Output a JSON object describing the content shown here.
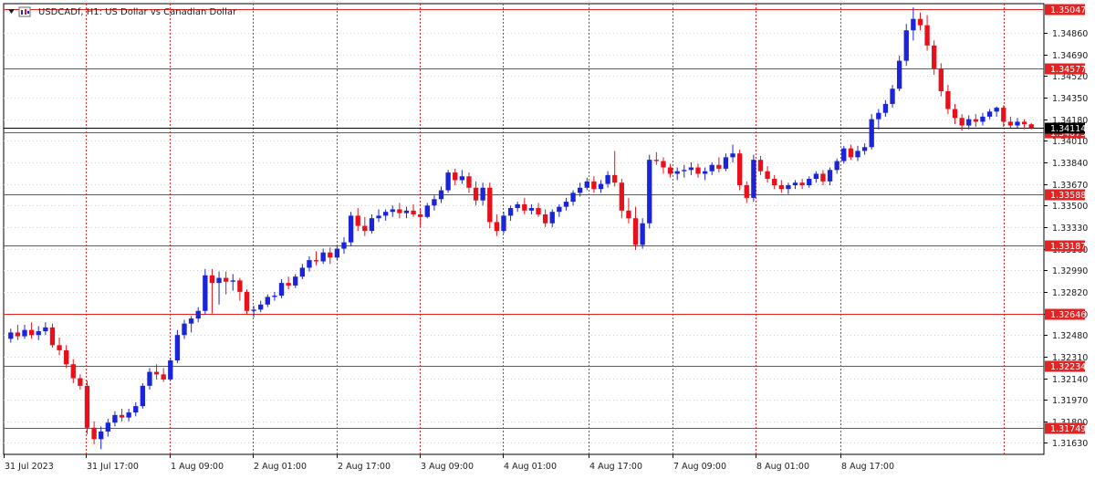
{
  "window": {
    "symbol_title": "USDCADf, H1:  US Dollar vs Canadian Dollar"
  },
  "colors": {
    "background": "#ffffff",
    "bull_candle": "#1a24d8",
    "bear_candle": "#e8101a",
    "level_line": "#e52323",
    "grid": "#d0d0d0",
    "time_separator": "#e52323",
    "current_price_line": "#000000",
    "text": "#1a1a1a"
  },
  "chart_data": {
    "type": "candlestick",
    "title": "USDCADf, H1:  US Dollar vs Canadian Dollar",
    "ylim": [
      1.3154,
      1.3509
    ],
    "price_ticks": [
      "1.34860",
      "1.34690",
      "1.34520",
      "1.34350",
      "1.34180",
      "1.34010",
      "1.33840",
      "1.33670",
      "1.33500",
      "1.33330",
      "1.33160",
      "1.32990",
      "1.32820",
      "1.32650",
      "1.32480",
      "1.32310",
      "1.32140",
      "1.31970",
      "1.31800",
      "1.31630"
    ],
    "time_labels": [
      "31 Jul 2023",
      "31 Jul 17:00",
      "1 Aug 09:00",
      "2 Aug 01:00",
      "2 Aug 17:00",
      "3 Aug 09:00",
      "4 Aug 01:00",
      "4 Aug 17:00",
      "7 Aug 09:00",
      "8 Aug 01:00",
      "8 Aug 17:00"
    ],
    "horizontal_levels": [
      {
        "price": 1.35047,
        "label": "1.35047"
      },
      {
        "price": 1.34577,
        "label": "1.34577"
      },
      {
        "price": 1.34075,
        "label": "1.34075"
      },
      {
        "price": 1.33588,
        "label": "1.33588"
      },
      {
        "price": 1.33187,
        "label": "1.33187"
      },
      {
        "price": 1.32646,
        "label": "1.32646"
      },
      {
        "price": 1.32234,
        "label": "1.32234"
      },
      {
        "price": 1.31749,
        "label": "1.31749"
      }
    ],
    "current_price": {
      "price": 1.34114,
      "label": "1.34114"
    },
    "candles": [
      [
        1.3245,
        1.3253,
        1.3242,
        1.325
      ],
      [
        1.325,
        1.3256,
        1.3244,
        1.3247
      ],
      [
        1.3247,
        1.3256,
        1.3245,
        1.3252
      ],
      [
        1.3252,
        1.3258,
        1.3245,
        1.3248
      ],
      [
        1.3248,
        1.3255,
        1.3244,
        1.3251
      ],
      [
        1.3251,
        1.3258,
        1.3248,
        1.3254
      ],
      [
        1.3254,
        1.3257,
        1.3238,
        1.324
      ],
      [
        1.324,
        1.3246,
        1.3232,
        1.3236
      ],
      [
        1.3236,
        1.324,
        1.3222,
        1.3225
      ],
      [
        1.3225,
        1.3229,
        1.321,
        1.3214
      ],
      [
        1.3214,
        1.3217,
        1.3205,
        1.3208
      ],
      [
        1.3208,
        1.3212,
        1.317,
        1.3175
      ],
      [
        1.3175,
        1.318,
        1.3162,
        1.3166
      ],
      [
        1.3166,
        1.3176,
        1.3158,
        1.3172
      ],
      [
        1.3172,
        1.3182,
        1.3168,
        1.3179
      ],
      [
        1.3179,
        1.3188,
        1.3176,
        1.3185
      ],
      [
        1.3185,
        1.319,
        1.318,
        1.3183
      ],
      [
        1.3183,
        1.319,
        1.318,
        1.3187
      ],
      [
        1.3187,
        1.3195,
        1.3184,
        1.3192
      ],
      [
        1.3192,
        1.321,
        1.319,
        1.3208
      ],
      [
        1.3208,
        1.3222,
        1.3205,
        1.3219
      ],
      [
        1.3219,
        1.3225,
        1.3213,
        1.3217
      ],
      [
        1.3217,
        1.3222,
        1.3211,
        1.3213
      ],
      [
        1.3213,
        1.323,
        1.3212,
        1.3228
      ],
      [
        1.3228,
        1.3252,
        1.3226,
        1.3248
      ],
      [
        1.3248,
        1.326,
        1.3245,
        1.3257
      ],
      [
        1.3257,
        1.3263,
        1.325,
        1.3261
      ],
      [
        1.3261,
        1.327,
        1.3258,
        1.3267
      ],
      [
        1.3267,
        1.33,
        1.3264,
        1.3295
      ],
      [
        1.3295,
        1.33,
        1.3265,
        1.3289
      ],
      [
        1.3289,
        1.3298,
        1.3272,
        1.3293
      ],
      [
        1.3293,
        1.3298,
        1.328,
        1.329
      ],
      [
        1.329,
        1.3296,
        1.3283,
        1.3291
      ],
      [
        1.3291,
        1.3293,
        1.3275,
        1.3282
      ],
      [
        1.3282,
        1.3284,
        1.3264,
        1.3267
      ],
      [
        1.3267,
        1.3271,
        1.3262,
        1.3268
      ],
      [
        1.3268,
        1.3275,
        1.3266,
        1.3272
      ],
      [
        1.3272,
        1.328,
        1.327,
        1.3278
      ],
      [
        1.3278,
        1.3282,
        1.3275,
        1.3279
      ],
      [
        1.3279,
        1.3292,
        1.3277,
        1.3289
      ],
      [
        1.3289,
        1.3294,
        1.3284,
        1.3287
      ],
      [
        1.3287,
        1.3296,
        1.3285,
        1.3294
      ],
      [
        1.3294,
        1.3304,
        1.3292,
        1.3301
      ],
      [
        1.3301,
        1.331,
        1.3298,
        1.3307
      ],
      [
        1.3307,
        1.3314,
        1.3303,
        1.3306
      ],
      [
        1.3306,
        1.3316,
        1.3304,
        1.3313
      ],
      [
        1.3313,
        1.3317,
        1.3304,
        1.3309
      ],
      [
        1.3309,
        1.3318,
        1.3307,
        1.3316
      ],
      [
        1.3316,
        1.3325,
        1.3312,
        1.3321
      ],
      [
        1.3321,
        1.3345,
        1.3318,
        1.3342
      ],
      [
        1.3342,
        1.3348,
        1.333,
        1.3334
      ],
      [
        1.3334,
        1.3341,
        1.3326,
        1.333
      ],
      [
        1.333,
        1.3343,
        1.3328,
        1.334
      ],
      [
        1.334,
        1.3347,
        1.3337,
        1.3342
      ],
      [
        1.3342,
        1.3347,
        1.3338,
        1.3345
      ],
      [
        1.3345,
        1.335,
        1.3341,
        1.3347
      ],
      [
        1.3347,
        1.3352,
        1.334,
        1.3344
      ],
      [
        1.3344,
        1.3349,
        1.334,
        1.3346
      ],
      [
        1.3346,
        1.3351,
        1.3341,
        1.3343
      ],
      [
        1.3343,
        1.3347,
        1.3333,
        1.3341
      ],
      [
        1.3341,
        1.3352,
        1.334,
        1.335
      ],
      [
        1.335,
        1.3358,
        1.3346,
        1.3355
      ],
      [
        1.3355,
        1.3365,
        1.3352,
        1.3362
      ],
      [
        1.3362,
        1.3378,
        1.336,
        1.3376
      ],
      [
        1.3376,
        1.3379,
        1.3366,
        1.337
      ],
      [
        1.337,
        1.3378,
        1.3367,
        1.3373
      ],
      [
        1.3373,
        1.3376,
        1.336,
        1.3364
      ],
      [
        1.3364,
        1.3369,
        1.335,
        1.3354
      ],
      [
        1.3354,
        1.3368,
        1.335,
        1.3364
      ],
      [
        1.3364,
        1.3368,
        1.3332,
        1.3337
      ],
      [
        1.3337,
        1.3343,
        1.3326,
        1.333
      ],
      [
        1.333,
        1.3345,
        1.3328,
        1.3342
      ],
      [
        1.3342,
        1.335,
        1.3338,
        1.3348
      ],
      [
        1.3348,
        1.3353,
        1.3345,
        1.3351
      ],
      [
        1.3351,
        1.3356,
        1.3343,
        1.3346
      ],
      [
        1.3346,
        1.3351,
        1.3343,
        1.3348
      ],
      [
        1.3348,
        1.3352,
        1.3341,
        1.3343
      ],
      [
        1.3343,
        1.3347,
        1.3333,
        1.3336
      ],
      [
        1.3336,
        1.3347,
        1.3333,
        1.3345
      ],
      [
        1.3345,
        1.3351,
        1.3341,
        1.3349
      ],
      [
        1.3349,
        1.3356,
        1.3346,
        1.3353
      ],
      [
        1.3353,
        1.3362,
        1.335,
        1.336
      ],
      [
        1.336,
        1.3368,
        1.3357,
        1.3364
      ],
      [
        1.3364,
        1.3372,
        1.3362,
        1.3369
      ],
      [
        1.3369,
        1.3373,
        1.336,
        1.3363
      ],
      [
        1.3363,
        1.337,
        1.336,
        1.3367
      ],
      [
        1.3367,
        1.3377,
        1.3364,
        1.3374
      ],
      [
        1.3374,
        1.3393,
        1.3365,
        1.3368
      ],
      [
        1.3368,
        1.3371,
        1.334,
        1.3346
      ],
      [
        1.3346,
        1.3356,
        1.3336,
        1.334
      ],
      [
        1.334,
        1.3349,
        1.3315,
        1.3319
      ],
      [
        1.3319,
        1.334,
        1.3316,
        1.3336
      ],
      [
        1.3336,
        1.339,
        1.3332,
        1.3386
      ],
      [
        1.3386,
        1.3392,
        1.3382,
        1.3385
      ],
      [
        1.3385,
        1.3388,
        1.3375,
        1.338
      ],
      [
        1.338,
        1.3383,
        1.3372,
        1.3375
      ],
      [
        1.3375,
        1.338,
        1.337,
        1.3377
      ],
      [
        1.3377,
        1.3382,
        1.3372,
        1.3378
      ],
      [
        1.3378,
        1.3384,
        1.3374,
        1.338
      ],
      [
        1.338,
        1.3383,
        1.3372,
        1.3375
      ],
      [
        1.3375,
        1.338,
        1.337,
        1.3377
      ],
      [
        1.3377,
        1.3384,
        1.3374,
        1.3382
      ],
      [
        1.3382,
        1.3388,
        1.3376,
        1.3379
      ],
      [
        1.3379,
        1.3391,
        1.3377,
        1.3388
      ],
      [
        1.3388,
        1.3398,
        1.3384,
        1.3391
      ],
      [
        1.3391,
        1.3394,
        1.3362,
        1.3366
      ],
      [
        1.3366,
        1.3369,
        1.3352,
        1.3356
      ],
      [
        1.3356,
        1.339,
        1.3353,
        1.3386
      ],
      [
        1.3386,
        1.3389,
        1.3374,
        1.3377
      ],
      [
        1.3377,
        1.3381,
        1.3368,
        1.3371
      ],
      [
        1.3371,
        1.3374,
        1.3363,
        1.3366
      ],
      [
        1.3366,
        1.337,
        1.336,
        1.3363
      ],
      [
        1.3363,
        1.3368,
        1.3359,
        1.3366
      ],
      [
        1.3366,
        1.337,
        1.3363,
        1.3368
      ],
      [
        1.3368,
        1.3371,
        1.3363,
        1.3366
      ],
      [
        1.3366,
        1.3373,
        1.3364,
        1.3371
      ],
      [
        1.3371,
        1.3377,
        1.3368,
        1.3375
      ],
      [
        1.3375,
        1.3378,
        1.3366,
        1.3369
      ],
      [
        1.3369,
        1.338,
        1.3366,
        1.3378
      ],
      [
        1.3378,
        1.3387,
        1.3375,
        1.3385
      ],
      [
        1.3385,
        1.3397,
        1.3383,
        1.3395
      ],
      [
        1.3395,
        1.3398,
        1.3386,
        1.3388
      ],
      [
        1.3388,
        1.3397,
        1.3385,
        1.3393
      ],
      [
        1.3393,
        1.3399,
        1.339,
        1.3396
      ],
      [
        1.3396,
        1.3422,
        1.3394,
        1.3418
      ],
      [
        1.3418,
        1.3426,
        1.341,
        1.3423
      ],
      [
        1.3423,
        1.3433,
        1.342,
        1.343
      ],
      [
        1.343,
        1.3445,
        1.3427,
        1.3442
      ],
      [
        1.3442,
        1.3468,
        1.344,
        1.3464
      ],
      [
        1.3464,
        1.3493,
        1.346,
        1.3488
      ],
      [
        1.3488,
        1.3506,
        1.348,
        1.3497
      ],
      [
        1.3497,
        1.3502,
        1.3488,
        1.3492
      ],
      [
        1.3492,
        1.35,
        1.3472,
        1.3476
      ],
      [
        1.3476,
        1.348,
        1.3453,
        1.3458
      ],
      [
        1.3458,
        1.3462,
        1.3436,
        1.344
      ],
      [
        1.344,
        1.3445,
        1.3422,
        1.3426
      ],
      [
        1.3426,
        1.343,
        1.3414,
        1.3419
      ],
      [
        1.3419,
        1.3422,
        1.3409,
        1.3413
      ],
      [
        1.3413,
        1.3421,
        1.341,
        1.3418
      ],
      [
        1.3418,
        1.3422,
        1.3412,
        1.3416
      ],
      [
        1.3416,
        1.3423,
        1.3413,
        1.342
      ],
      [
        1.342,
        1.3426,
        1.3418,
        1.3424
      ],
      [
        1.3424,
        1.3428,
        1.342,
        1.3427
      ],
      [
        1.3427,
        1.3429,
        1.3412,
        1.3416
      ],
      [
        1.3416,
        1.342,
        1.3411,
        1.3413
      ],
      [
        1.3413,
        1.3419,
        1.3411,
        1.3416
      ],
      [
        1.3416,
        1.3418,
        1.341,
        1.3414
      ],
      [
        1.3414,
        1.3415,
        1.341,
        1.3411
      ]
    ]
  }
}
